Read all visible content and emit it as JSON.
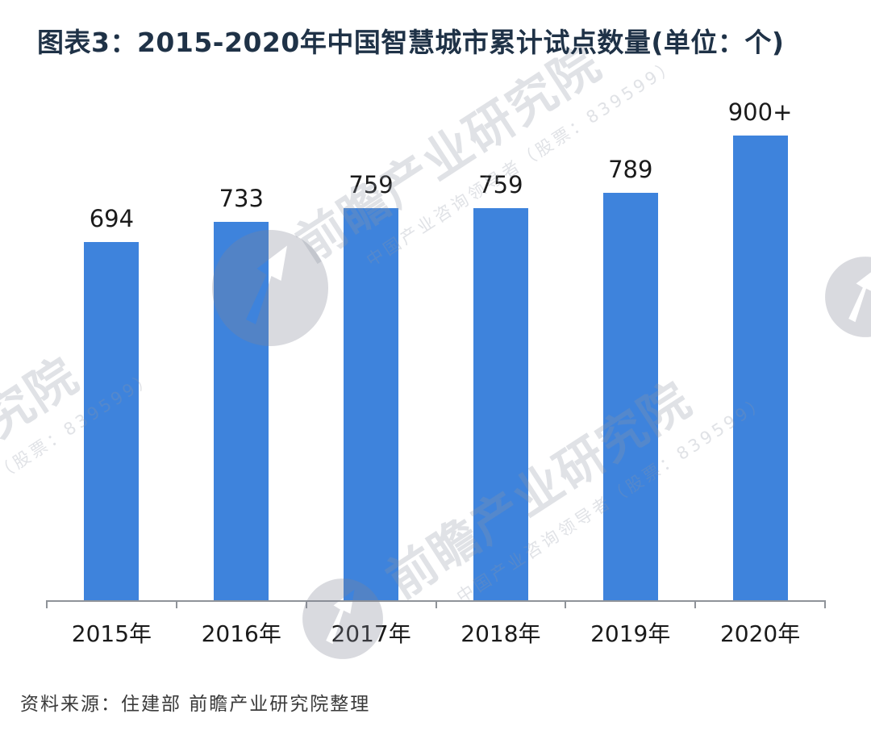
{
  "page": {
    "title": "图表3：2015-2020年中国智慧城市累计试点数量(单位：个)",
    "source_note": "资料来源：住建部 前瞻产业研究院整理"
  },
  "watermark": {
    "brand_text": "前瞻产业研究院",
    "brand_subtext": "中国产业咨询领导者（股票：839599）",
    "logo": "qianzhan-bird-logo"
  },
  "colors": {
    "bar": "#3e83dc",
    "title": "#1f3247",
    "label": "#1a1a1a",
    "axis": "#8f9399",
    "source": "#3a3a3a",
    "watermark_text": "rgba(145,150,165,0.28)",
    "watermark_logo": "rgba(128,134,150,0.30)"
  },
  "chart_data": {
    "type": "bar",
    "title": "图表3：2015-2020年中国智慧城市累计试点数量(单位：个)",
    "unit": "个",
    "categories": [
      "2015年",
      "2016年",
      "2017年",
      "2018年",
      "2019年",
      "2020年"
    ],
    "values": [
      694,
      733,
      759,
      759,
      789,
      900
    ],
    "value_labels": [
      "694",
      "733",
      "759",
      "759",
      "789",
      "900+"
    ],
    "xlabel": "",
    "ylabel": "",
    "ylim": [
      0,
      1000
    ],
    "grid": false,
    "legend": "none",
    "value_labels_position": "above-bar",
    "source": "资料来源：住建部 前瞻产业研究院整理"
  }
}
